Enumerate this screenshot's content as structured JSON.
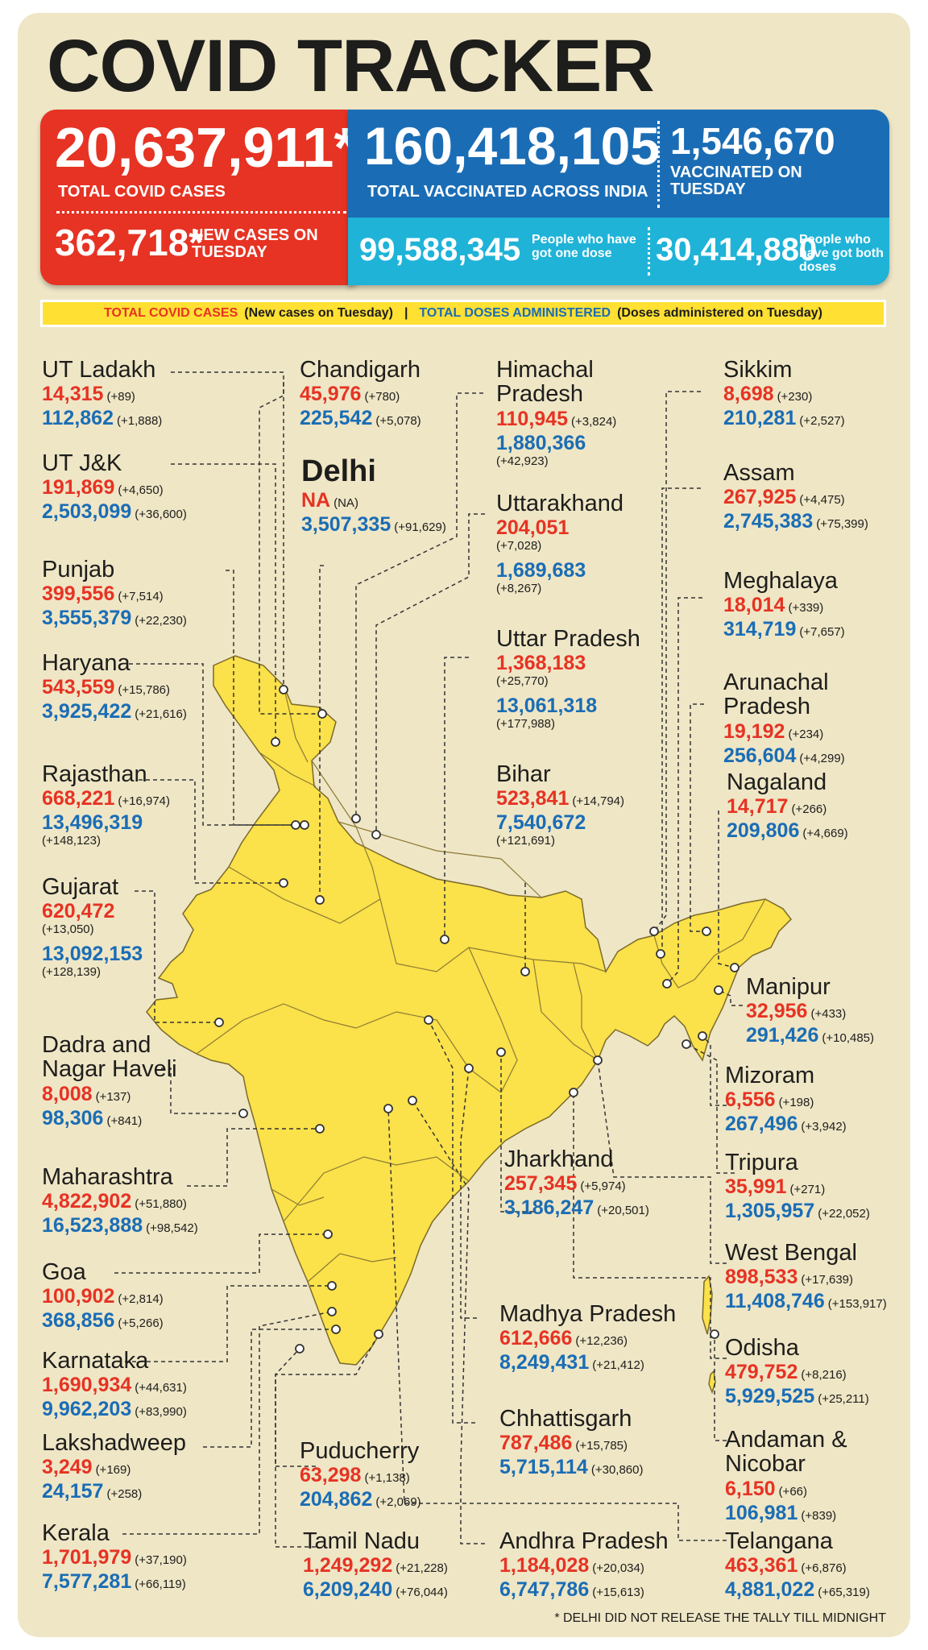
{
  "title": "COVID TRACKER",
  "summary": {
    "total_cases": "20,637,911*",
    "total_cases_label": "TOTAL COVID CASES",
    "new_cases": "362,718*",
    "new_cases_label": "NEW CASES ON TUESDAY",
    "total_vaccinated": "160,418,105",
    "total_vaccinated_label": "TOTAL VACCINATED ACROSS INDIA",
    "vaccinated_tuesday": "1,546,670",
    "vaccinated_tuesday_label": "VACCINATED ON TUESDAY",
    "one_dose": "99,588,345",
    "one_dose_label": "People who have got one dose",
    "both_doses": "30,414,880",
    "both_doses_label": "People who have got both doses"
  },
  "legend": {
    "cases": "TOTAL COVID CASES",
    "cases_note": "(New cases on Tuesday)",
    "sep": "|",
    "doses": "TOTAL DOSES ADMINISTERED",
    "doses_note": "(Doses administered on Tuesday)"
  },
  "colors": {
    "red": "#e63323",
    "blue": "#1a6db5",
    "cyan": "#1fb3d8",
    "map_yellow": "#fbe14a",
    "background": "#efe6c6"
  },
  "states": [
    {
      "name": "UT Ladakh",
      "cases": "14,315",
      "cases_new": "(+89)",
      "doses": "112,862",
      "doses_new": "(+1,888)"
    },
    {
      "name": "UT J&K",
      "cases": "191,869",
      "cases_new": "(+4,650)",
      "doses": "2,503,099",
      "doses_new": "(+36,600)"
    },
    {
      "name": "Punjab",
      "cases": "399,556",
      "cases_new": "(+7,514)",
      "doses": "3,555,379",
      "doses_new": "(+22,230)"
    },
    {
      "name": "Haryana",
      "cases": "543,559",
      "cases_new": "(+15,786)",
      "doses": "3,925,422",
      "doses_new": "(+21,616)"
    },
    {
      "name": "Rajasthan",
      "cases": "668,221",
      "cases_new": "(+16,974)",
      "doses": "13,496,319",
      "doses_new": "(+148,123)"
    },
    {
      "name": "Gujarat",
      "cases": "620,472",
      "cases_new": "(+13,050)",
      "doses": "13,092,153",
      "doses_new": "(+128,139)"
    },
    {
      "name": "Dadra and\nNagar Haveli",
      "cases": "8,008",
      "cases_new": "(+137)",
      "doses": "98,306",
      "doses_new": "(+841)"
    },
    {
      "name": "Maharashtra",
      "cases": "4,822,902",
      "cases_new": "(+51,880)",
      "doses": "16,523,888",
      "doses_new": "(+98,542)"
    },
    {
      "name": "Goa",
      "cases": "100,902",
      "cases_new": "(+2,814)",
      "doses": "368,856",
      "doses_new": "(+5,266)"
    },
    {
      "name": "Karnataka",
      "cases": "1,690,934",
      "cases_new": "(+44,631)",
      "doses": "9,962,203",
      "doses_new": "(+83,990)"
    },
    {
      "name": "Lakshadweep",
      "cases": "3,249",
      "cases_new": "(+169)",
      "doses": "24,157",
      "doses_new": "(+258)"
    },
    {
      "name": "Kerala",
      "cases": "1,701,979",
      "cases_new": "(+37,190)",
      "doses": "7,577,281",
      "doses_new": "(+66,119)"
    },
    {
      "name": "Chandigarh",
      "cases": "45,976",
      "cases_new": "(+780)",
      "doses": "225,542",
      "doses_new": "(+5,078)"
    },
    {
      "name": "Delhi",
      "cases": "NA",
      "cases_new": "(NA)",
      "doses": "3,507,335",
      "doses_new": "(+91,629)"
    },
    {
      "name": "Puducherry",
      "cases": "63,298",
      "cases_new": "(+1,138)",
      "doses": "204,862",
      "doses_new": "(+2,069)"
    },
    {
      "name": "Tamil Nadu",
      "cases": "1,249,292",
      "cases_new": "(+21,228)",
      "doses": "6,209,240",
      "doses_new": "(+76,044)"
    },
    {
      "name": "Himachal\nPradesh",
      "cases": "110,945",
      "cases_new": "(+3,824)",
      "doses": "1,880,366",
      "doses_new": "(+42,923)"
    },
    {
      "name": "Uttarakhand",
      "cases": "204,051",
      "cases_new": "(+7,028)",
      "doses": "1,689,683",
      "doses_new": "(+8,267)"
    },
    {
      "name": "Uttar Pradesh",
      "cases": "1,368,183",
      "cases_new": "(+25,770)",
      "doses": "13,061,318",
      "doses_new": "(+177,988)"
    },
    {
      "name": "Bihar",
      "cases": "523,841",
      "cases_new": "(+14,794)",
      "doses": "7,540,672",
      "doses_new": "(+121,691)"
    },
    {
      "name": "Jharkhand",
      "cases": "257,345",
      "cases_new": "(+5,974)",
      "doses": "3,186,247",
      "doses_new": "(+20,501)"
    },
    {
      "name": "Madhya Pradesh",
      "cases": "612,666",
      "cases_new": "(+12,236)",
      "doses": "8,249,431",
      "doses_new": "(+21,412)"
    },
    {
      "name": "Chhattisgarh",
      "cases": "787,486",
      "cases_new": "(+15,785)",
      "doses": "5,715,114",
      "doses_new": "(+30,860)"
    },
    {
      "name": "Andhra Pradesh",
      "cases": "1,184,028",
      "cases_new": "(+20,034)",
      "doses": "6,747,786",
      "doses_new": "(+15,613)"
    },
    {
      "name": "Sikkim",
      "cases": "8,698",
      "cases_new": "(+230)",
      "doses": "210,281",
      "doses_new": "(+2,527)"
    },
    {
      "name": "Assam",
      "cases": "267,925",
      "cases_new": "(+4,475)",
      "doses": "2,745,383",
      "doses_new": "(+75,399)"
    },
    {
      "name": "Meghalaya",
      "cases": "18,014",
      "cases_new": "(+339)",
      "doses": "314,719",
      "doses_new": "(+7,657)"
    },
    {
      "name": "Arunachal Pradesh",
      "cases": "19,192",
      "cases_new": "(+234)",
      "doses": "256,604",
      "doses_new": "(+4,299)"
    },
    {
      "name": "Nagaland",
      "cases": "14,717",
      "cases_new": "(+266)",
      "doses": "209,806",
      "doses_new": "(+4,669)"
    },
    {
      "name": "Manipur",
      "cases": "32,956",
      "cases_new": "(+433)",
      "doses": "291,426",
      "doses_new": "(+10,485)"
    },
    {
      "name": "Mizoram",
      "cases": "6,556",
      "cases_new": "(+198)",
      "doses": "267,496",
      "doses_new": "(+3,942)"
    },
    {
      "name": "Tripura",
      "cases": "35,991",
      "cases_new": "(+271)",
      "doses": "1,305,957",
      "doses_new": "(+22,052)"
    },
    {
      "name": "West Bengal",
      "cases": "898,533",
      "cases_new": "(+17,639)",
      "doses": "11,408,746",
      "doses_new": "(+153,917)"
    },
    {
      "name": "Odisha",
      "cases": "479,752",
      "cases_new": "(+8,216)",
      "doses": "5,929,525",
      "doses_new": "(+25,211)"
    },
    {
      "name": "Andaman & Nicobar",
      "cases": "6,150",
      "cases_new": "(+66)",
      "doses": "106,981",
      "doses_new": "(+839)"
    },
    {
      "name": "Telangana",
      "cases": "463,361",
      "cases_new": "(+6,876)",
      "doses": "4,881,022",
      "doses_new": "(+65,319)"
    }
  ],
  "footnote": "* DELHI DID NOT RELEASE THE TALLY TILL MIDNIGHT"
}
